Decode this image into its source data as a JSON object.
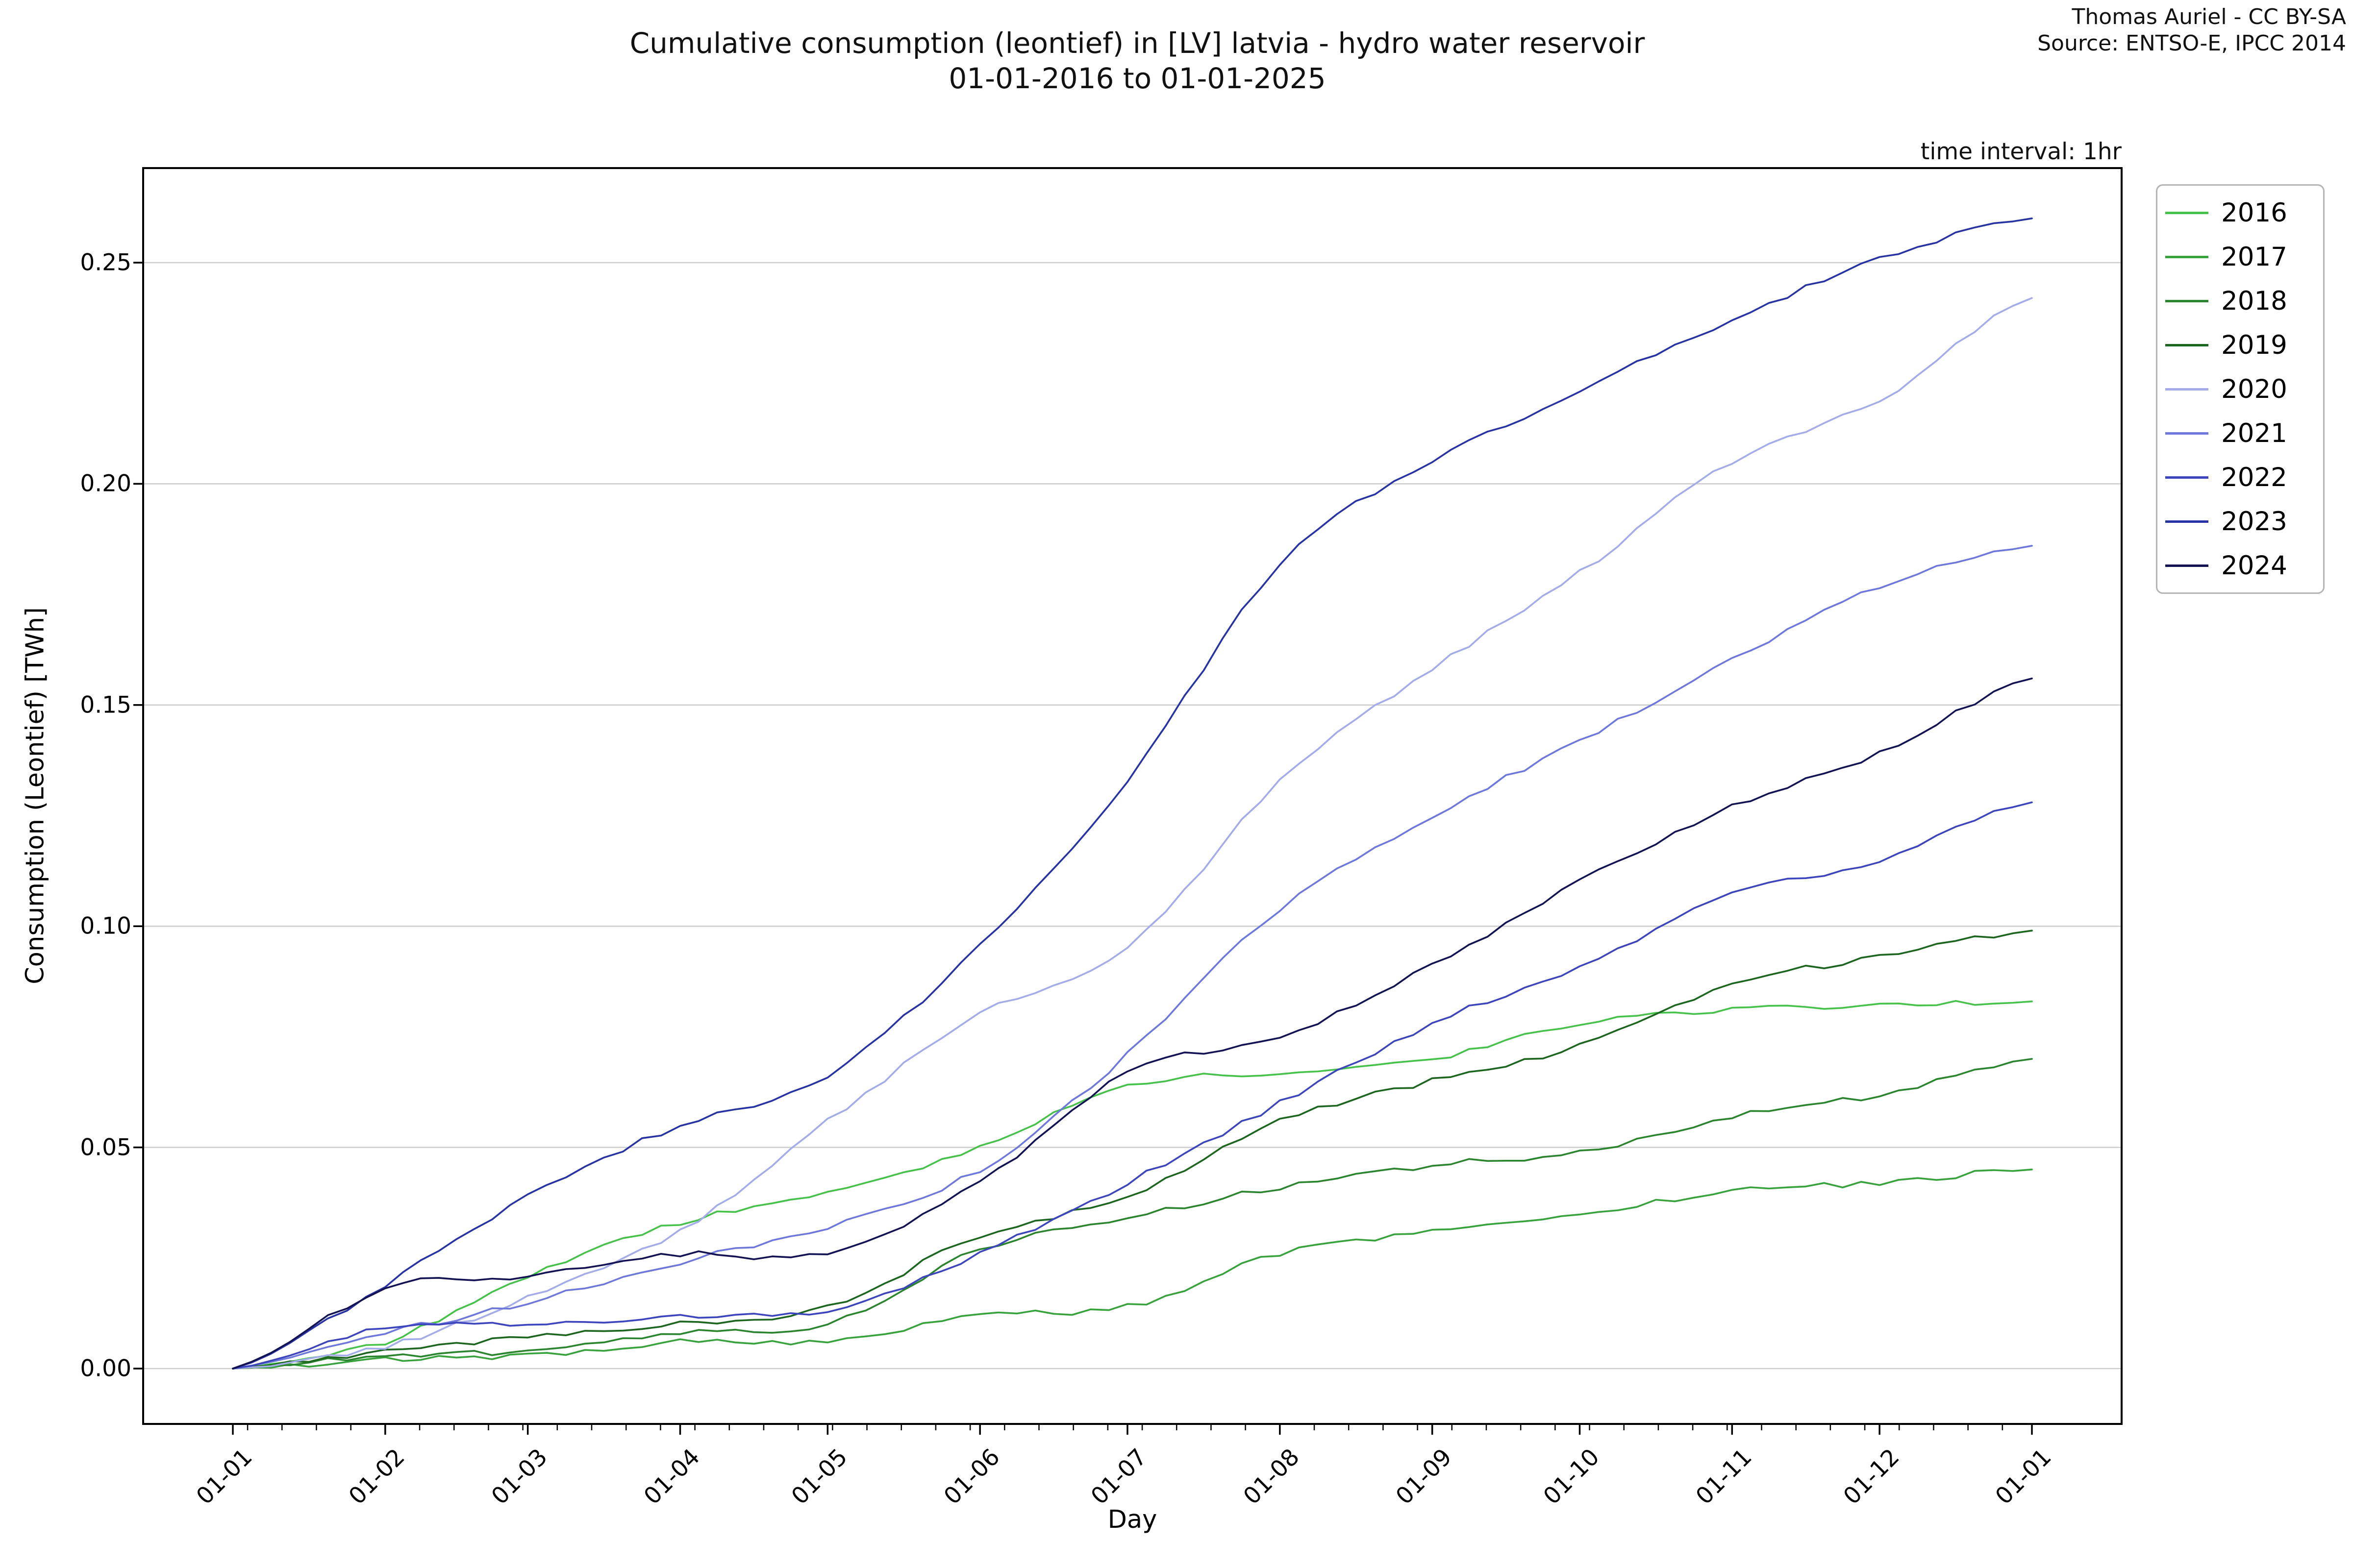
{
  "header": {
    "title_line1": "Cumulative consumption (leontief) in [LV] latvia - hydro water reservoir",
    "title_line2": "01-01-2016 to 01-01-2025",
    "attribution_line1": "Thomas Auriel - CC BY-SA",
    "attribution_line2": "Source: ENTSO-E, IPCC 2014",
    "note": "time interval: 1hr"
  },
  "chart_data": {
    "type": "line",
    "title": "Cumulative consumption (leontief) in [LV] latvia - hydro water reservoir 01-01-2016 to 01-01-2025",
    "xlabel": "Day",
    "ylabel": "Consumption (Leontief) [TWh]",
    "x_tick_labels": [
      "01-01",
      "01-02",
      "01-03",
      "01-04",
      "01-05",
      "01-06",
      "01-07",
      "01-08",
      "01-09",
      "01-10",
      "01-11",
      "01-12",
      "01-01"
    ],
    "x_tick_days": [
      0,
      31,
      60,
      91,
      121,
      152,
      182,
      213,
      244,
      274,
      305,
      335,
      366
    ],
    "x_minor_ticks": {
      "start_day": 3,
      "step_days": 7
    },
    "x_range_days": [
      0,
      366
    ],
    "ylim": [
      -0.012,
      0.271
    ],
    "y_ticks": [
      0.0,
      0.05,
      0.1,
      0.15,
      0.2,
      0.25
    ],
    "y_tick_labels": [
      "0.00",
      "0.05",
      "0.10",
      "0.15",
      "0.20",
      "0.25"
    ],
    "grid": "horizontal",
    "grid_color": "#cdcdcd",
    "legend_position": "outside upper right",
    "series": [
      {
        "name": "2016",
        "color": "#46c24b",
        "values": [
          0,
          0.006,
          0.021,
          0.033,
          0.04,
          0.05,
          0.064,
          0.067,
          0.07,
          0.078,
          0.081,
          0.082,
          0.083
        ]
      },
      {
        "name": "2017",
        "color": "#38a33c",
        "values": [
          0,
          0.002,
          0.003,
          0.006,
          0.006,
          0.012,
          0.014,
          0.026,
          0.031,
          0.035,
          0.04,
          0.042,
          0.045
        ]
      },
      {
        "name": "2018",
        "color": "#2a852e",
        "values": [
          0,
          0.003,
          0.004,
          0.008,
          0.01,
          0.027,
          0.034,
          0.041,
          0.046,
          0.049,
          0.057,
          0.062,
          0.07
        ]
      },
      {
        "name": "2019",
        "color": "#1c661f",
        "values": [
          0,
          0.004,
          0.007,
          0.01,
          0.014,
          0.03,
          0.039,
          0.056,
          0.065,
          0.073,
          0.087,
          0.093,
          0.099
        ]
      },
      {
        "name": "2020",
        "color": "#a3abe8",
        "values": [
          0,
          0.005,
          0.016,
          0.031,
          0.056,
          0.08,
          0.095,
          0.133,
          0.158,
          0.18,
          0.205,
          0.219,
          0.242
        ]
      },
      {
        "name": "2021",
        "color": "#6e78db",
        "values": [
          0,
          0.008,
          0.015,
          0.024,
          0.032,
          0.045,
          0.071,
          0.104,
          0.125,
          0.142,
          0.16,
          0.177,
          0.186
        ]
      },
      {
        "name": "2022",
        "color": "#3c45bb",
        "values": [
          0,
          0.009,
          0.01,
          0.012,
          0.013,
          0.026,
          0.042,
          0.06,
          0.078,
          0.091,
          0.107,
          0.115,
          0.128
        ]
      },
      {
        "name": "2023",
        "color": "#2733a3",
        "values": [
          0,
          0.019,
          0.039,
          0.055,
          0.066,
          0.096,
          0.133,
          0.182,
          0.205,
          0.221,
          0.237,
          0.251,
          0.26
        ]
      },
      {
        "name": "2024",
        "color": "#131353",
        "values": [
          0,
          0.018,
          0.021,
          0.026,
          0.026,
          0.042,
          0.067,
          0.075,
          0.091,
          0.11,
          0.127,
          0.139,
          0.156
        ]
      }
    ]
  }
}
